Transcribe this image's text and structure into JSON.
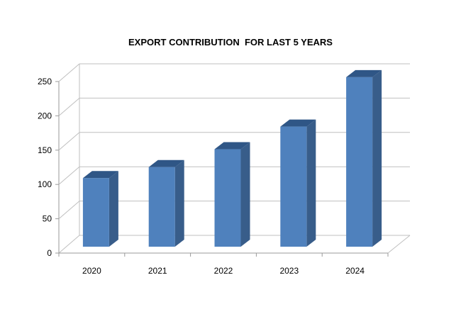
{
  "chart_data": {
    "type": "bar",
    "title": "EXPORT CONTRIBUTION  FOR LAST 5 YEARS",
    "xlabel": "",
    "ylabel": "",
    "categories": [
      "2020",
      "2021",
      "2022",
      "2023",
      "2024"
    ],
    "values": [
      100,
      116,
      142,
      175,
      247
    ],
    "ylim": [
      0,
      250
    ],
    "yticks": [
      0,
      50,
      100,
      150,
      200,
      250
    ],
    "grid": true,
    "legend": "none",
    "style": "3d-column",
    "colors": {
      "bar_front": "#4F81BD",
      "bar_side": "#385D8A",
      "bar_top": "#2F5686",
      "grid": "#BFBFBF",
      "axis": "#888888"
    }
  }
}
